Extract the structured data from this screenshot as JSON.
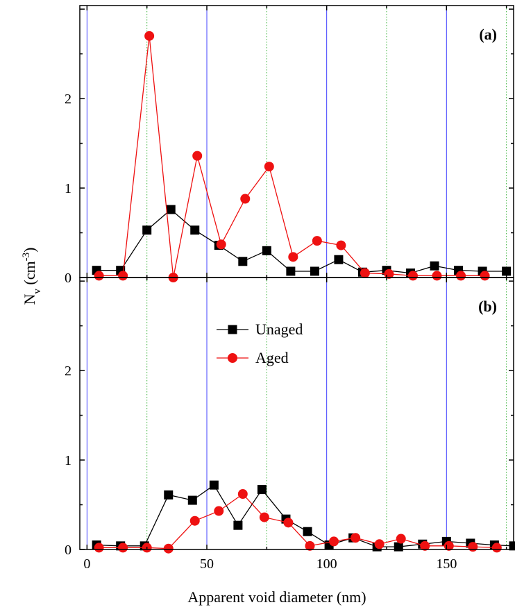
{
  "chart_data": [
    {
      "type": "line",
      "panel_label": "(a)",
      "xlim": [
        -3,
        178
      ],
      "ylim": [
        0,
        3.04
      ],
      "x_ticks": [
        0,
        50,
        100,
        150
      ],
      "y_ticks": [
        0,
        1,
        2
      ],
      "grid": {
        "major_x": [
          0,
          50,
          100,
          150
        ],
        "minor_x": [
          25,
          75,
          125,
          175
        ],
        "major_color": "#4040ff",
        "minor_color": "#3cb43c"
      },
      "series": [
        {
          "name": "Unaged",
          "color": "#000000",
          "marker": "square",
          "x": [
            4,
            14,
            25,
            35,
            45,
            55,
            65,
            75,
            85,
            95,
            105,
            115,
            125,
            135,
            145,
            155,
            165,
            175
          ],
          "y": [
            0.08,
            0.08,
            0.53,
            0.76,
            0.53,
            0.36,
            0.18,
            0.3,
            0.07,
            0.07,
            0.2,
            0.06,
            0.08,
            0.05,
            0.13,
            0.08,
            0.07,
            0.07
          ]
        },
        {
          "name": "Aged",
          "color": "#ee1111",
          "marker": "circle",
          "x": [
            5,
            15,
            26,
            36,
            46,
            56,
            66,
            76,
            86,
            96,
            106,
            116,
            126,
            136,
            146,
            156,
            166
          ],
          "y": [
            0.02,
            0.02,
            2.7,
            0.0,
            1.36,
            0.37,
            0.88,
            1.24,
            0.23,
            0.41,
            0.36,
            0.05,
            0.04,
            0.02,
            0.02,
            0.02,
            0.02
          ]
        }
      ]
    },
    {
      "type": "line",
      "panel_label": "(b)",
      "xlim": [
        -3,
        178
      ],
      "ylim": [
        0,
        3.04
      ],
      "x_ticks": [
        0,
        50,
        100,
        150
      ],
      "x_tick_labels": [
        "0",
        "50",
        "100",
        "150"
      ],
      "y_ticks": [
        0,
        1,
        2
      ],
      "xlabel": "Apparent void diameter (nm)",
      "legend": {
        "position": "top-center",
        "entries": [
          "Unaged",
          "Aged"
        ]
      },
      "grid": {
        "major_x": [
          0,
          50,
          100,
          150
        ],
        "minor_x": [
          25,
          75,
          125,
          175
        ],
        "major_color": "#4040ff",
        "minor_color": "#3cb43c"
      },
      "series": [
        {
          "name": "Unaged",
          "color": "#000000",
          "marker": "square",
          "x": [
            4,
            14,
            24,
            34,
            44,
            53,
            63,
            73,
            83,
            92,
            101,
            111,
            121,
            130,
            140,
            150,
            160,
            170,
            178
          ],
          "y": [
            0.05,
            0.04,
            0.04,
            0.61,
            0.55,
            0.72,
            0.27,
            0.67,
            0.34,
            0.2,
            0.05,
            0.13,
            0.03,
            0.03,
            0.06,
            0.09,
            0.07,
            0.05,
            0.04
          ]
        },
        {
          "name": "Aged",
          "color": "#ee1111",
          "marker": "circle",
          "x": [
            5,
            15,
            25,
            34,
            45,
            55,
            65,
            74,
            84,
            93,
            103,
            112,
            122,
            131,
            141,
            151,
            161,
            171
          ],
          "y": [
            0.02,
            0.02,
            0.02,
            0.01,
            0.32,
            0.43,
            0.62,
            0.36,
            0.3,
            0.04,
            0.09,
            0.13,
            0.06,
            0.12,
            0.04,
            0.04,
            0.03,
            0.02
          ]
        }
      ]
    }
  ],
  "ylabel": {
    "main": "N",
    "subscript": "v",
    "unit_open": " (cm",
    "superscript": "-3",
    "unit_close": ")"
  }
}
